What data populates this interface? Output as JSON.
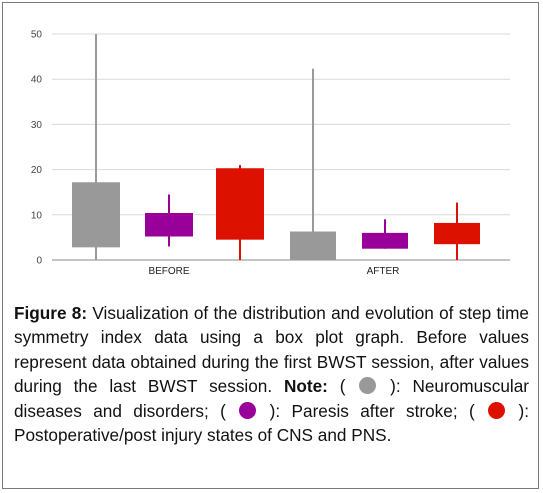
{
  "chart_data": {
    "type": "boxplot",
    "categories": [
      "BEFORE",
      "AFTER"
    ],
    "ylim": [
      0,
      50
    ],
    "yticks": [
      0,
      10,
      20,
      30,
      40,
      50
    ],
    "grid": true,
    "series": [
      {
        "color": "#999999",
        "boxes": [
          {
            "min": 0,
            "q1": 2.8,
            "q3": 17.2,
            "max": 50
          },
          {
            "min": 0,
            "q1": 0,
            "q3": 6.3,
            "max": 42.3
          }
        ]
      },
      {
        "color": "#990099",
        "boxes": [
          {
            "min": 3.0,
            "q1": 5.2,
            "q3": 10.4,
            "max": 14.5
          },
          {
            "min": 2.5,
            "q1": 2.5,
            "q3": 6.0,
            "max": 9.0
          }
        ]
      },
      {
        "color": "#dd1100",
        "boxes": [
          {
            "min": 0,
            "q1": 4.5,
            "q3": 20.3,
            "max": 21.0
          },
          {
            "min": 0,
            "q1": 3.5,
            "q3": 8.2,
            "max": 12.7
          }
        ]
      }
    ]
  },
  "caption": {
    "label": "Figure 8:",
    "text": " Visualization of the distribution and evolution of step time symmetry index data using a box plot graph. Before values represent data obtained during the first BWST session, after values during the last BWST session.",
    "note_label": "Note:",
    "open": " ( ",
    "close_1": " ): Neuromuscular diseases and disorders; ( ",
    "close_2": " ): Paresis after stroke; ( ",
    "close_3": " ): Postoperative/post injury states of CNS and PNS."
  }
}
